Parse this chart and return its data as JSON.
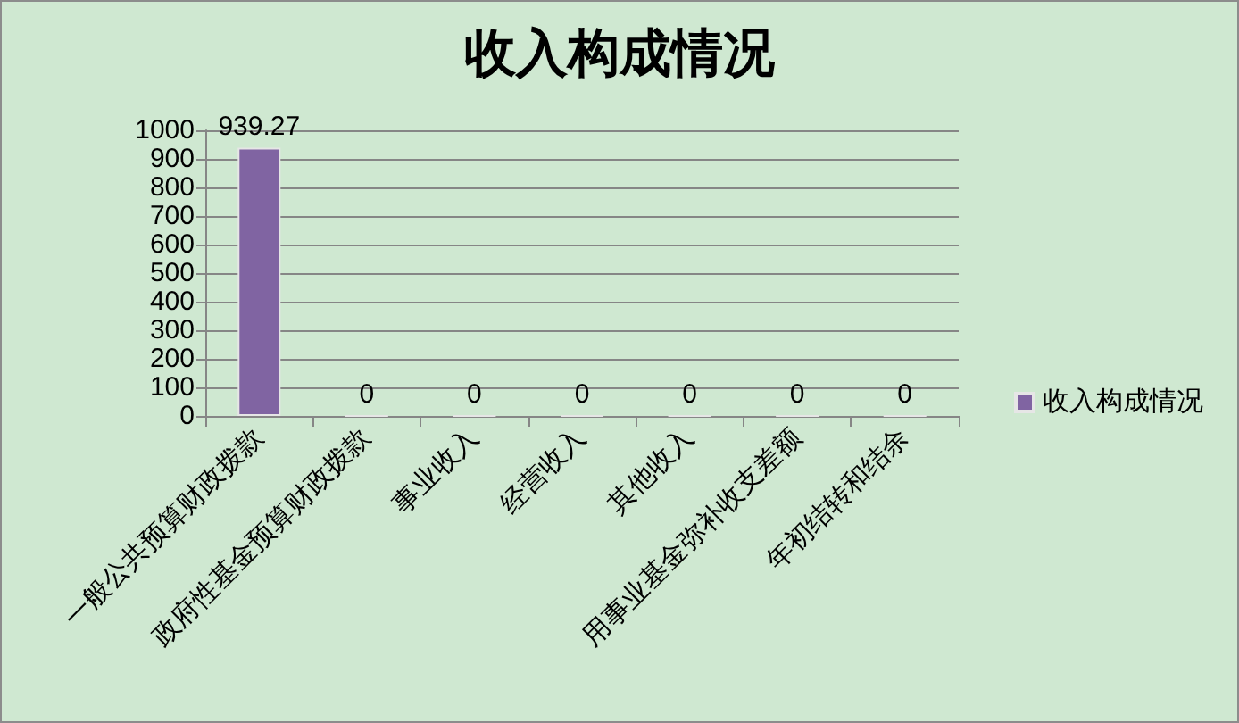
{
  "chart_data": {
    "type": "bar",
    "title": "收入构成情况",
    "categories": [
      "一般公共预算财政拨款",
      "政府性基金预算财政拨款",
      "事业收入",
      "经营收入",
      "其他收入",
      "用事业基金弥补收支差额",
      "年初结转和结余"
    ],
    "series": [
      {
        "name": "收入构成情况",
        "color": "#8064a2",
        "values": [
          939.27,
          0,
          0,
          0,
          0,
          0,
          0
        ]
      }
    ],
    "ylim": [
      0,
      1000
    ],
    "yticks": [
      0,
      100,
      200,
      300,
      400,
      500,
      600,
      700,
      800,
      900,
      1000
    ],
    "grid": "y",
    "legend": "right",
    "data_labels": true
  }
}
